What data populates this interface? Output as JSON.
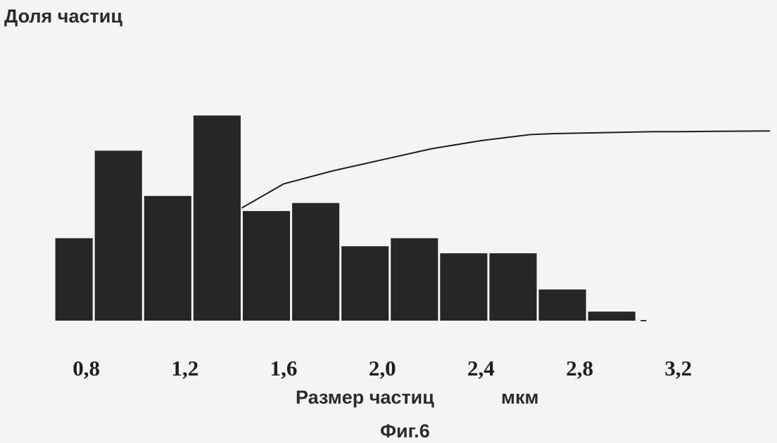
{
  "chart_data": {
    "type": "bar",
    "ylabel": "Доля частиц",
    "xlabel": "Размер частиц",
    "xunit": "мкм",
    "caption": "Фиг.6",
    "x_ticks": [
      "0,8",
      "1,2",
      "1,6",
      "2,0",
      "2,4",
      "2,8",
      "3,2"
    ],
    "x_tick_values": [
      0.8,
      1.2,
      1.6,
      2.0,
      2.4,
      2.8,
      3.2
    ],
    "xlim": [
      0.45,
      3.6
    ],
    "ylim": [
      0,
      1
    ],
    "bar_color": "#262626",
    "line_color": "#1e1e1e",
    "bins": [
      {
        "x0": 0.67,
        "x1": 0.83,
        "value": 0.41
      },
      {
        "x0": 0.83,
        "x1": 1.03,
        "value": 0.845
      },
      {
        "x0": 1.03,
        "x1": 1.23,
        "value": 0.62
      },
      {
        "x0": 1.23,
        "x1": 1.43,
        "value": 1.02
      },
      {
        "x0": 1.43,
        "x1": 1.63,
        "value": 0.545
      },
      {
        "x0": 1.63,
        "x1": 1.83,
        "value": 0.585
      },
      {
        "x0": 1.83,
        "x1": 2.03,
        "value": 0.37
      },
      {
        "x0": 2.03,
        "x1": 2.23,
        "value": 0.41
      },
      {
        "x0": 2.23,
        "x1": 2.43,
        "value": 0.335
      },
      {
        "x0": 2.43,
        "x1": 2.63,
        "value": 0.335
      },
      {
        "x0": 2.63,
        "x1": 2.83,
        "value": 0.155
      },
      {
        "x0": 2.83,
        "x1": 3.03,
        "value": 0.045
      }
    ],
    "cumulative": {
      "x": [
        1.43,
        1.6,
        1.8,
        2.0,
        2.2,
        2.4,
        2.6,
        2.7,
        2.9,
        3.1,
        3.2
      ],
      "values": [
        0.56,
        0.68,
        0.745,
        0.8,
        0.855,
        0.895,
        0.925,
        0.93,
        0.935,
        0.94,
        0.94
      ]
    }
  }
}
